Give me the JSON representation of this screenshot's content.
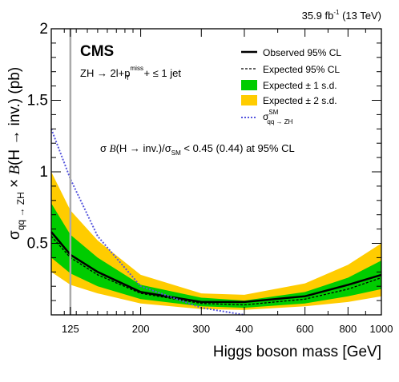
{
  "chart_data": {
    "type": "area",
    "title": "",
    "luminosity": "35.9 fb",
    "luminosity_sup": "-1",
    "luminosity_rest": " (13 TeV)",
    "experiment": "CMS",
    "selection": {
      "prefix": "ZH → 2l+p",
      "sup": "miss",
      "sub": "T",
      "suffix": " + ≤ 1 jet"
    },
    "result_text": {
      "prefix": "σ ",
      "b": "B",
      "middle": "(H → inv.)/σ",
      "sub": "SM",
      "suffix": " < 0.45 (0.44) at 95% CL"
    },
    "xlabel": "Higgs boson mass [GeV]",
    "ylabel": {
      "sigma": "σ",
      "sub": "qq → ZH",
      "times": " × ",
      "b": "B",
      "rest": "(H → inv.) (pb)"
    },
    "x_scale": "log",
    "xlim": [
      110,
      1000
    ],
    "ylim": [
      0,
      2
    ],
    "x_ticks": [
      {
        "value": 125,
        "label": "125"
      },
      {
        "value": 200,
        "label": "200"
      },
      {
        "value": 300,
        "label": "300"
      },
      {
        "value": 400,
        "label": "400"
      },
      {
        "value": 600,
        "label": "600"
      },
      {
        "value": 800,
        "label": "800"
      },
      {
        "value": 1000,
        "label": "1000"
      }
    ],
    "y_ticks": [
      {
        "value": 0.5,
        "label": "0.5"
      },
      {
        "value": 1,
        "label": "1"
      },
      {
        "value": 1.5,
        "label": "1.5"
      },
      {
        "value": 2,
        "label": "2"
      }
    ],
    "x": [
      110,
      125,
      150,
      200,
      300,
      400,
      600,
      800,
      1000
    ],
    "observed": [
      0.58,
      0.42,
      0.3,
      0.16,
      0.09,
      0.09,
      0.13,
      0.21,
      0.28
    ],
    "expected": [
      0.55,
      0.4,
      0.28,
      0.15,
      0.08,
      0.07,
      0.11,
      0.18,
      0.26
    ],
    "band_1sd_low": [
      0.4,
      0.29,
      0.2,
      0.11,
      0.06,
      0.05,
      0.08,
      0.13,
      0.18
    ],
    "band_1sd_high": [
      0.78,
      0.56,
      0.4,
      0.21,
      0.12,
      0.1,
      0.16,
      0.26,
      0.38
    ],
    "band_2sd_low": [
      0.3,
      0.21,
      0.15,
      0.08,
      0.04,
      0.035,
      0.06,
      0.09,
      0.13
    ],
    "band_2sd_high": [
      1.0,
      0.73,
      0.52,
      0.28,
      0.15,
      0.14,
      0.22,
      0.35,
      0.5
    ],
    "theory_x": [
      110,
      125,
      150,
      200,
      300,
      400
    ],
    "theory": [
      1.3,
      0.95,
      0.55,
      0.2,
      0.05,
      0.0
    ],
    "vline_x": 125,
    "legend": {
      "placement": "top-right",
      "observed": "Observed 95% CL",
      "expected": "Expected 95% CL",
      "band1": "Expected ± 1 s.d.",
      "band2": "Expected ± 2 s.d.",
      "theory_sigma": "σ",
      "theory_sup": "SM",
      "theory_sub": "qq → ZH"
    },
    "colors": {
      "band1": "#00cc00",
      "band2": "#ffcc00",
      "theory": "#5555dd",
      "vline": "#aaaaaa"
    }
  }
}
